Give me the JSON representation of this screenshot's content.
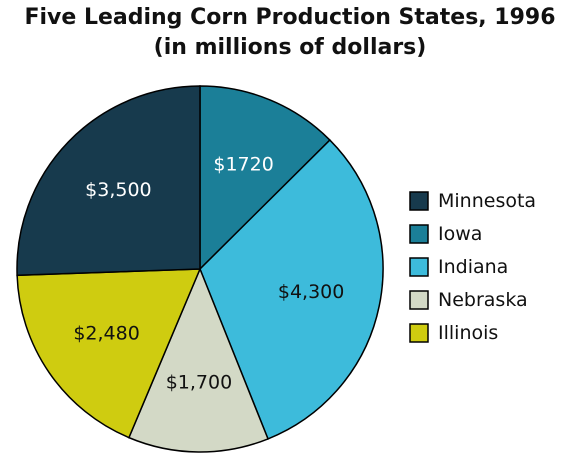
{
  "chart_data": {
    "type": "pie",
    "title": "Five Leading Corn Production States, 1996",
    "subtitle": "(in millions of dollars)",
    "legend_position": "right",
    "slices": [
      {
        "name": "Iowa",
        "value": 1720,
        "label": "$1720",
        "color": "#1b7f98",
        "label_color": "#ffffff"
      },
      {
        "name": "Indiana",
        "value": 4300,
        "label": "$4,300",
        "color": "#3dbbdb",
        "label_color": "#111111"
      },
      {
        "name": "Nebraska",
        "value": 1700,
        "label": "$1,700",
        "color": "#d3d9c6",
        "label_color": "#111111"
      },
      {
        "name": "Illinois",
        "value": 2480,
        "label": "$2,480",
        "color": "#cfcc10",
        "label_color": "#111111"
      },
      {
        "name": "Minnesota",
        "value": 3500,
        "label": "$3,500",
        "color": "#173a4d",
        "label_color": "#ffffff"
      }
    ],
    "legend_order": [
      "Minnesota",
      "Iowa",
      "Indiana",
      "Nebraska",
      "Illinois"
    ]
  }
}
